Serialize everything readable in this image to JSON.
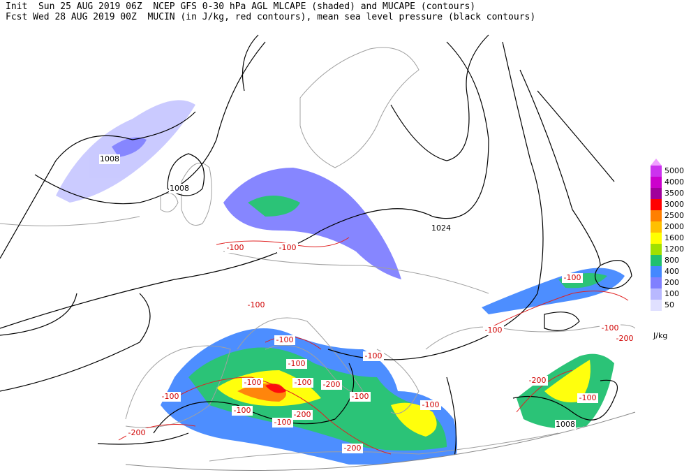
{
  "header": {
    "line1": "Init  Sun 25 AUG 2019 06Z  NCEP GFS 0-30 hPa AGL MLCAPE (shaded) and MUCAPE (contours)",
    "line2": "Fcst Wed 28 AUG 2019 00Z  MUCIN (in J/kg, red contours), mean sea level pressure (black contours)"
  },
  "colorbar": {
    "unit": "J/kg",
    "levels": [
      {
        "label": "5000",
        "color": "#cc33ee"
      },
      {
        "label": "4000",
        "color": "#cc00cc"
      },
      {
        "label": "3500",
        "color": "#a0009a"
      },
      {
        "label": "3000",
        "color": "#ff0000"
      },
      {
        "label": "2500",
        "color": "#ff7f00"
      },
      {
        "label": "2000",
        "color": "#ffc000"
      },
      {
        "label": "1600",
        "color": "#ffff00"
      },
      {
        "label": "1200",
        "color": "#a0e000"
      },
      {
        "label": "800",
        "color": "#20c070"
      },
      {
        "label": "400",
        "color": "#4488ff"
      },
      {
        "label": "200",
        "color": "#8080ff"
      },
      {
        "label": "100",
        "color": "#b8b8ff"
      },
      {
        "label": "50",
        "color": "#e0e0ff"
      }
    ],
    "top": "#f0a0ff"
  },
  "pressure_labels": [
    "1008",
    "1008",
    "1024",
    "1008"
  ],
  "cin_labels": [
    "-100",
    "-100",
    "-100",
    "-100",
    "-100",
    "-100",
    "-100",
    "-100",
    "-100",
    "-200",
    "-100",
    "-100",
    "-100",
    "-200",
    "-100",
    "-200",
    "-100",
    "-100",
    "-200",
    "-100",
    "-200",
    "-200",
    "-100"
  ]
}
